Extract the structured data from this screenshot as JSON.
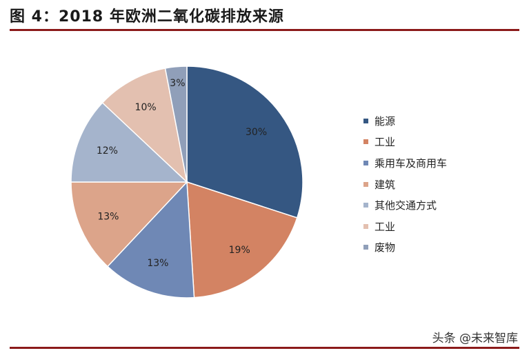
{
  "title": "图 4：2018 年欧洲二氧化碳排放来源",
  "watermark": "头条 @未来智库",
  "colors": {
    "rule": "#8b1a1a"
  },
  "chart_data": {
    "type": "pie",
    "title": "",
    "legend_position": "right",
    "slices": [
      {
        "label": "能源",
        "value": 30,
        "display": "30%",
        "color": "#355782"
      },
      {
        "label": "工业",
        "value": 19,
        "display": "19%",
        "color": "#d38363"
      },
      {
        "label": "乘用车及商用车",
        "value": 13,
        "display": "13%",
        "color": "#6f88b5"
      },
      {
        "label": "建筑",
        "value": 13,
        "display": "13%",
        "color": "#dca48a"
      },
      {
        "label": "其他交通方式",
        "value": 12,
        "display": "12%",
        "color": "#a5b4cc"
      },
      {
        "label": "工业",
        "value": 10,
        "display": "10%",
        "color": "#e3c0b0"
      },
      {
        "label": "废物",
        "value": 3,
        "display": "3%",
        "color": "#909fb9"
      }
    ]
  }
}
